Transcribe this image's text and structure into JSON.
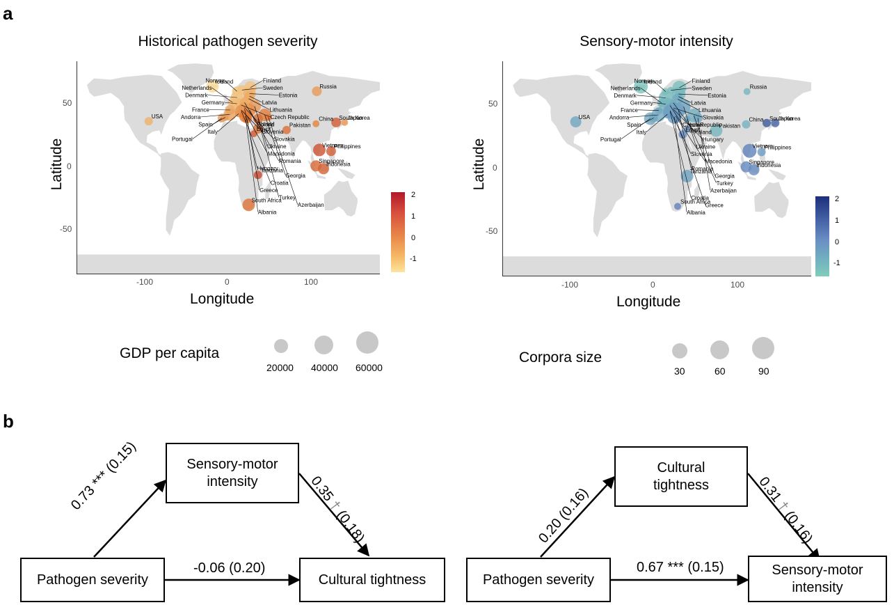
{
  "panels": {
    "a": "a",
    "b": "b"
  },
  "maps": [
    {
      "title": "Historical pathogen severity",
      "xlabel": "Longitude",
      "ylabel": "Latitude",
      "xticks": [
        "-100",
        "0",
        "100"
      ],
      "yticks": [
        "50",
        "0",
        "-50"
      ],
      "colorbar": {
        "ticks": [
          "2",
          "1",
          "0",
          "-1"
        ],
        "low_color": "#fde49e",
        "mid_color": "#e07b39",
        "high_color": "#b2182b"
      },
      "legend": {
        "title": "GDP per capita",
        "labels": [
          "20000",
          "40000",
          "60000"
        ]
      }
    },
    {
      "title": "Sensory-motor intensity",
      "xlabel": "Longitude",
      "ylabel": "Latitude",
      "xticks": [
        "-100",
        "0",
        "100"
      ],
      "yticks": [
        "50",
        "0",
        "-50"
      ],
      "colorbar": {
        "ticks": [
          "2",
          "1",
          "0",
          "-1"
        ],
        "low_color": "#7fcdbb",
        "mid_color": "#6a8fc4",
        "high_color": "#1d2f7a"
      },
      "legend": {
        "title": "Corpora size",
        "labels": [
          "30",
          "60",
          "90"
        ]
      }
    }
  ],
  "chart_data": [
    {
      "type": "scatter",
      "title": "Historical pathogen severity",
      "xlabel": "Longitude",
      "ylabel": "Latitude",
      "xlim": [
        -180,
        180
      ],
      "ylim": [
        -85,
        85
      ],
      "points": [
        {
          "label": "Iceland",
          "lon": -19,
          "lat": 65,
          "value": -1.3
        },
        {
          "label": "Norway",
          "lon": 10,
          "lat": 61,
          "value": -1.0
        },
        {
          "label": "Finland",
          "lon": 26,
          "lat": 64,
          "value": -0.9
        },
        {
          "label": "Sweden",
          "lon": 16,
          "lat": 62,
          "value": -0.9
        },
        {
          "label": "Estonia",
          "lon": 25,
          "lat": 59,
          "value": -0.6
        },
        {
          "label": "Netherlands",
          "lon": 5,
          "lat": 52,
          "value": -0.8
        },
        {
          "label": "Denmark",
          "lon": 10,
          "lat": 56,
          "value": -0.9
        },
        {
          "label": "Latvia",
          "lon": 25,
          "lat": 57,
          "value": -0.5
        },
        {
          "label": "Lithuania",
          "lon": 24,
          "lat": 55,
          "value": -0.5
        },
        {
          "label": "Czech Republic",
          "lon": 15,
          "lat": 50,
          "value": -0.6
        },
        {
          "label": "Germany",
          "lon": 10,
          "lat": 51,
          "value": -0.8
        },
        {
          "label": "Poland",
          "lon": 19,
          "lat": 52,
          "value": -0.5
        },
        {
          "label": "France",
          "lon": 2,
          "lat": 46,
          "value": -0.5
        },
        {
          "label": "Slovenia",
          "lon": 15,
          "lat": 46,
          "value": -0.5
        },
        {
          "label": "Slovakia",
          "lon": 19,
          "lat": 48,
          "value": -0.4
        },
        {
          "label": "Ukraine",
          "lon": 31,
          "lat": 49,
          "value": -0.2
        },
        {
          "label": "Andorra",
          "lon": 1.5,
          "lat": 42.5,
          "value": -0.3
        },
        {
          "label": "Macedonia",
          "lon": 21.7,
          "lat": 41.6,
          "value": 0.1
        },
        {
          "label": "Romania",
          "lon": 25,
          "lat": 46,
          "value": 0.0
        },
        {
          "label": "Hungary",
          "lon": 19,
          "lat": 47,
          "value": -0.3
        },
        {
          "label": "Spain",
          "lon": -4,
          "lat": 40,
          "value": -0.2
        },
        {
          "label": "Italy",
          "lon": 12,
          "lat": 43,
          "value": 0.0
        },
        {
          "label": "Georgia",
          "lon": 43,
          "lat": 42,
          "value": 0.3
        },
        {
          "label": "China",
          "lon": 104,
          "lat": 35,
          "value": 0.2
        },
        {
          "label": "Japan",
          "lon": 138,
          "lat": 36,
          "value": -0.2
        },
        {
          "label": "Portugal",
          "lon": -8,
          "lat": 39.5,
          "value": -0.2
        },
        {
          "label": "Croatia",
          "lon": 15.2,
          "lat": 45.1,
          "value": -0.1
        },
        {
          "label": "Greece",
          "lon": 22,
          "lat": 39,
          "value": 0.2
        },
        {
          "label": "Turkey",
          "lon": 35,
          "lat": 39,
          "value": 0.6
        },
        {
          "label": "Azerbaijan",
          "lon": 47.5,
          "lat": 40.1,
          "value": 0.4
        },
        {
          "label": "South Korea",
          "lon": 128,
          "lat": 36,
          "value": 0.9
        },
        {
          "label": "Albania",
          "lon": 20,
          "lat": 41,
          "value": 0.4
        },
        {
          "label": "Israel",
          "lon": 35,
          "lat": 31,
          "value": 0.5
        },
        {
          "label": "Egypt",
          "lon": 30,
          "lat": 27,
          "value": 1.0
        },
        {
          "label": "Pakistan",
          "lon": 69,
          "lat": 30,
          "value": 0.6
        },
        {
          "label": "Russia",
          "lon": 105,
          "lat": 61,
          "value": -0.2
        },
        {
          "label": "USA",
          "lon": -95,
          "lat": 37,
          "value": -0.6
        },
        {
          "label": "Vietnam",
          "lon": 108,
          "lat": 14,
          "value": 1.1
        },
        {
          "label": "Philippines",
          "lon": 122,
          "lat": 13,
          "value": 0.9
        },
        {
          "label": "Singapore",
          "lon": 104,
          "lat": 1.3,
          "value": 0.7
        },
        {
          "label": "Indonesia",
          "lon": 113,
          "lat": -1,
          "value": 0.8
        },
        {
          "label": "Tanzania",
          "lon": 35,
          "lat": -6,
          "value": 1.3
        },
        {
          "label": "South Africa",
          "lon": 24,
          "lat": -30,
          "value": 0.5
        }
      ],
      "color_scale": {
        "min": -1.5,
        "max": 2.2
      },
      "size_legend": {
        "title": "GDP per capita",
        "values": [
          20000,
          40000,
          60000
        ]
      }
    },
    {
      "type": "scatter",
      "title": "Sensory-motor intensity",
      "xlabel": "Longitude",
      "ylabel": "Latitude",
      "xlim": [
        -180,
        180
      ],
      "ylim": [
        -85,
        85
      ],
      "points": [
        {
          "label": "Iceland",
          "lon": -19,
          "lat": 65,
          "value": -1.2
        },
        {
          "label": "Norway",
          "lon": 10,
          "lat": 61,
          "value": -1.3
        },
        {
          "label": "Finland",
          "lon": 26,
          "lat": 64,
          "value": -1.1
        },
        {
          "label": "Sweden",
          "lon": 16,
          "lat": 62,
          "value": -1.0
        },
        {
          "label": "Estonia",
          "lon": 25,
          "lat": 59,
          "value": -0.9
        },
        {
          "label": "Latvia",
          "lon": 25,
          "lat": 57,
          "value": -0.6
        },
        {
          "label": "Netherlands",
          "lon": 5,
          "lat": 52,
          "value": -0.7
        },
        {
          "label": "Denmark",
          "lon": 10,
          "lat": 56,
          "value": -1.0
        },
        {
          "label": "Lithuania",
          "lon": 24,
          "lat": 55,
          "value": -0.5
        },
        {
          "label": "Slovakia",
          "lon": 19,
          "lat": 48,
          "value": -0.3
        },
        {
          "label": "Czech Republic",
          "lon": 15,
          "lat": 50,
          "value": -0.5
        },
        {
          "label": "Germany",
          "lon": 10,
          "lat": 51,
          "value": -0.8
        },
        {
          "label": "Poland",
          "lon": 19,
          "lat": 52,
          "value": -0.6
        },
        {
          "label": "Hungary",
          "lon": 19,
          "lat": 47,
          "value": -0.2
        },
        {
          "label": "Ukraine",
          "lon": 31,
          "lat": 49,
          "value": -0.3
        },
        {
          "label": "France",
          "lon": 2,
          "lat": 46,
          "value": -0.5
        },
        {
          "label": "Slovenia",
          "lon": 15,
          "lat": 46,
          "value": -0.4
        },
        {
          "label": "Macedonia",
          "lon": 21.7,
          "lat": 41.6,
          "value": 0.1
        },
        {
          "label": "Romania",
          "lon": 25,
          "lat": 46,
          "value": -0.2
        },
        {
          "label": "Andorra",
          "lon": 1.5,
          "lat": 42.5,
          "value": -0.4
        },
        {
          "label": "Georgia",
          "lon": 43,
          "lat": 42,
          "value": -0.6
        },
        {
          "label": "China",
          "lon": 104,
          "lat": 35,
          "value": -0.7
        },
        {
          "label": "Japan",
          "lon": 138,
          "lat": 36,
          "value": 1.2
        },
        {
          "label": "Spain",
          "lon": -4,
          "lat": 40,
          "value": -0.3
        },
        {
          "label": "Italy",
          "lon": 12,
          "lat": 43,
          "value": -0.2
        },
        {
          "label": "Turkey",
          "lon": 35,
          "lat": 39,
          "value": -0.3
        },
        {
          "label": "Azerbaijan",
          "lon": 47.5,
          "lat": 40.1,
          "value": -0.4
        },
        {
          "label": "South Korea",
          "lon": 128,
          "lat": 36,
          "value": 1.4
        },
        {
          "label": "Portugal",
          "lon": -8,
          "lat": 39.5,
          "value": -0.4
        },
        {
          "label": "Croatia",
          "lon": 15.2,
          "lat": 45.1,
          "value": -0.2
        },
        {
          "label": "Greece",
          "lon": 22,
          "lat": 39,
          "value": 0.1
        },
        {
          "label": "Israel",
          "lon": 35,
          "lat": 31,
          "value": 0.2
        },
        {
          "label": "Pakistan",
          "lon": 69,
          "lat": 30,
          "value": -0.8
        },
        {
          "label": "Albania",
          "lon": 20,
          "lat": 41,
          "value": 0.0
        },
        {
          "label": "Egypt",
          "lon": 30,
          "lat": 27,
          "value": 0.4
        },
        {
          "label": "Russia",
          "lon": 105,
          "lat": 61,
          "value": -0.8
        },
        {
          "label": "USA",
          "lon": -95,
          "lat": 37,
          "value": -0.3
        },
        {
          "label": "Vietnam",
          "lon": 108,
          "lat": 14,
          "value": 0.6
        },
        {
          "label": "Philippines",
          "lon": 122,
          "lat": 13,
          "value": 0.0
        },
        {
          "label": "Singapore",
          "lon": 104,
          "lat": 1.3,
          "value": 0.5
        },
        {
          "label": "Indonesia",
          "lon": 113,
          "lat": -1,
          "value": 0.4
        },
        {
          "label": "Tanzania",
          "lon": 35,
          "lat": -6,
          "value": -0.2
        },
        {
          "label": "South Africa",
          "lon": 24,
          "lat": -30,
          "value": 0.6
        }
      ],
      "color_scale": {
        "min": -1.5,
        "max": 2.2
      },
      "size_legend": {
        "title": "Corpora size",
        "values": [
          30,
          60,
          90
        ]
      }
    }
  ],
  "diagrams": [
    {
      "predictor": "Pathogen severity",
      "mediator": "Sensory-motor intensity",
      "outcome": "Cultural tightness",
      "path_a": "0.73 *** (0.15)",
      "path_b_value": "0.35",
      "path_b_sig": "†",
      "path_b_se": "(0.18)",
      "path_c": "-0.06 (0.20)"
    },
    {
      "predictor": "Pathogen severity",
      "mediator": "Cultural tightness",
      "outcome": "Sensory-motor intensity",
      "path_a": "0.20 (0.16)",
      "path_b_value": "0.31",
      "path_b_sig": "†",
      "path_b_se": "(0.16)",
      "path_c": "0.67 *** (0.15)"
    }
  ]
}
